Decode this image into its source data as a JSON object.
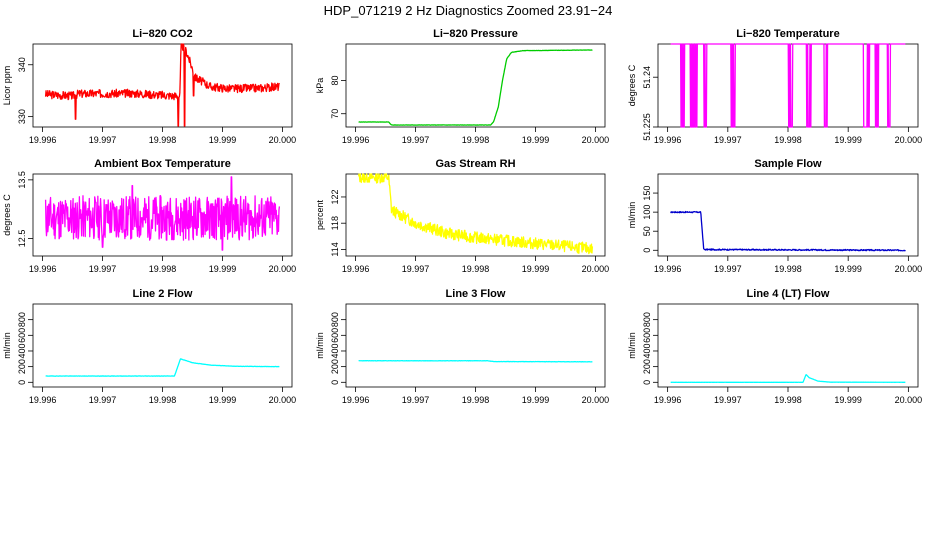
{
  "page_title": "HDP_071219  2 Hz Diagnostics Zoomed 23.91−24",
  "chart_data": [
    {
      "type": "line",
      "title": "Li−820 CO2",
      "ylabel": "Licor ppm",
      "color": "#ff0000",
      "xlim": [
        19.996,
        20.0
      ],
      "x_ticks": [
        "19.996",
        "19.997",
        "19.998",
        "19.999",
        "20.000"
      ],
      "ylim": [
        328,
        344
      ],
      "y_ticks": [
        330,
        340
      ],
      "series": [
        {
          "name": "CO2",
          "kind": "noisy",
          "noise": 0.5,
          "seed": 3,
          "points": [
            [
              19.99605,
              334.3
            ],
            [
              19.9965,
              334.0
            ],
            [
              19.9966,
              334.4
            ],
            [
              19.9975,
              334.5
            ],
            [
              19.9982,
              334.0
            ],
            [
              19.99829,
              334.0
            ],
            [
              19.99831,
              344.0
            ],
            [
              19.9984,
              342.5
            ],
            [
              19.99855,
              337.5
            ],
            [
              19.9988,
              335.8
            ],
            [
              19.9991,
              335.4
            ],
            [
              19.9996,
              335.5
            ],
            [
              19.99995,
              335.8
            ]
          ],
          "spikes": [
            [
              19.99655,
              329.5
            ],
            [
              19.99826,
              328.2
            ],
            [
              19.99837,
              328.2
            ],
            [
              19.99852,
              334.0
            ]
          ]
        }
      ]
    },
    {
      "type": "line",
      "title": "Li−820 Pressure",
      "ylabel": "kPa",
      "color": "#00cc00",
      "xlim": [
        19.996,
        20.0
      ],
      "x_ticks": [
        "19.996",
        "19.997",
        "19.998",
        "19.999",
        "20.000"
      ],
      "ylim": [
        66,
        91
      ],
      "y_ticks": [
        70,
        80
      ],
      "series": [
        {
          "name": "Pressure",
          "kind": "smooth",
          "noise": 0.05,
          "seed": 5,
          "points": [
            [
              19.99605,
              67.5
            ],
            [
              19.99655,
              67.5
            ],
            [
              19.9966,
              66.6
            ],
            [
              19.99825,
              66.6
            ],
            [
              19.9983,
              67.5
            ],
            [
              19.99838,
              72.0
            ],
            [
              19.99845,
              80.0
            ],
            [
              19.99852,
              86.5
            ],
            [
              19.9986,
              88.5
            ],
            [
              19.9988,
              89.0
            ],
            [
              19.99995,
              89.2
            ]
          ],
          "spikes": []
        }
      ]
    },
    {
      "type": "line",
      "title": "Li−820 Temperature",
      "ylabel": "degrees C",
      "color": "#ff00ff",
      "xlim": [
        19.996,
        20.0
      ],
      "x_ticks": [
        "19.996",
        "19.997",
        "19.998",
        "19.999",
        "20.000"
      ],
      "ylim": [
        51.225,
        51.25
      ],
      "y_ticks": [
        51.225,
        51.24
      ],
      "series": [
        {
          "name": "Temperature",
          "kind": "binary",
          "high": 51.25,
          "low": 51.225,
          "seed": 7,
          "points": [
            [
              19.99605,
              51.25
            ],
            [
              19.99995,
              51.25
            ]
          ],
          "drop_regions": [
            [
              19.99622,
              19.99628
            ],
            [
              19.99638,
              19.9965
            ],
            [
              19.9966,
              19.99666
            ],
            [
              19.99705,
              19.99712
            ],
            [
              19.998,
              19.99808
            ],
            [
              19.9983,
              19.99838
            ],
            [
              19.9986,
              19.99866
            ],
            [
              19.99925,
              19.99935
            ],
            [
              19.99945,
              19.9995
            ],
            [
              19.99965,
              19.9997
            ]
          ]
        }
      ]
    },
    {
      "type": "line",
      "title": "Ambient Box Temperature",
      "ylabel": "degrees C",
      "color": "#ff00ff",
      "xlim": [
        19.996,
        20.0
      ],
      "x_ticks": [
        "19.996",
        "19.997",
        "19.998",
        "19.999",
        "20.000"
      ],
      "ylim": [
        12.2,
        13.6
      ],
      "y_ticks": [
        12.5,
        13.5
      ],
      "series": [
        {
          "name": "Ambient",
          "kind": "noisy",
          "noise": 0.24,
          "seed": 11,
          "points": [
            [
              19.99605,
              12.85
            ],
            [
              19.99995,
              12.85
            ]
          ],
          "spikes": [
            [
              19.997,
              12.35
            ],
            [
              19.9975,
              13.4
            ],
            [
              19.999,
              12.3
            ],
            [
              19.99915,
              13.55
            ]
          ]
        }
      ]
    },
    {
      "type": "line",
      "title": "Gas Stream RH",
      "ylabel": "percent",
      "color": "#ffff00",
      "xlim": [
        19.996,
        20.0
      ],
      "x_ticks": [
        "19.996",
        "19.997",
        "19.998",
        "19.999",
        "20.000"
      ],
      "ylim": [
        113,
        125.5
      ],
      "y_ticks": [
        114,
        118,
        122
      ],
      "series": [
        {
          "name": "RH",
          "kind": "noisy",
          "noise": 0.55,
          "seed": 13,
          "points": [
            [
              19.99605,
              125.0
            ],
            [
              19.99655,
              125.0
            ],
            [
              19.9966,
              120.0
            ],
            [
              19.997,
              118.0
            ],
            [
              19.9975,
              116.5
            ],
            [
              19.998,
              115.8
            ],
            [
              19.999,
              114.9
            ],
            [
              19.99995,
              114.1
            ]
          ],
          "spikes": []
        }
      ]
    },
    {
      "type": "line",
      "title": "Sample Flow",
      "ylabel": "ml/min",
      "color": "#0000cc",
      "xlim": [
        19.996,
        20.0
      ],
      "x_ticks": [
        "19.996",
        "19.997",
        "19.998",
        "19.999",
        "20.000"
      ],
      "ylim": [
        -15,
        200
      ],
      "y_ticks": [
        0,
        50,
        100,
        150
      ],
      "series": [
        {
          "name": "Sample Flow",
          "kind": "noisy",
          "noise": 1.0,
          "seed": 17,
          "points": [
            [
              19.99605,
              100
            ],
            [
              19.99655,
              100
            ],
            [
              19.9966,
              2
            ],
            [
              19.99995,
              0
            ]
          ],
          "spikes": []
        }
      ]
    },
    {
      "type": "line",
      "title": "Line 2 Flow",
      "ylabel": "ml/min",
      "color": "#00ffff",
      "xlim": [
        19.996,
        20.0
      ],
      "x_ticks": [
        "19.996",
        "19.997",
        "19.998",
        "19.999",
        "20.000"
      ],
      "ylim": [
        -60,
        1000
      ],
      "y_ticks": [
        0,
        200,
        400,
        600,
        800
      ],
      "series": [
        {
          "name": "Line 2",
          "kind": "smooth",
          "noise": 2,
          "seed": 19,
          "points": [
            [
              19.99605,
              80
            ],
            [
              19.9982,
              80
            ],
            [
              19.9983,
              300
            ],
            [
              19.9985,
              250
            ],
            [
              19.9988,
              220
            ],
            [
              19.9992,
              205
            ],
            [
              19.99995,
              200
            ]
          ],
          "spikes": []
        }
      ]
    },
    {
      "type": "line",
      "title": "Line 3 Flow",
      "ylabel": "ml/min",
      "color": "#00ffff",
      "xlim": [
        19.996,
        20.0
      ],
      "x_ticks": [
        "19.996",
        "19.997",
        "19.998",
        "19.999",
        "20.000"
      ],
      "ylim": [
        -60,
        1000
      ],
      "y_ticks": [
        0,
        200,
        400,
        600,
        800
      ],
      "series": [
        {
          "name": "Line 3",
          "kind": "smooth",
          "noise": 2,
          "seed": 23,
          "points": [
            [
              19.99605,
              275
            ],
            [
              19.9982,
              275
            ],
            [
              19.9983,
              265
            ],
            [
              19.99995,
              262
            ]
          ],
          "spikes": []
        }
      ]
    },
    {
      "type": "line",
      "title": "Line 4 (LT) Flow",
      "ylabel": "ml/min",
      "color": "#00ffff",
      "xlim": [
        19.996,
        20.0
      ],
      "x_ticks": [
        "19.996",
        "19.997",
        "19.998",
        "19.999",
        "20.000"
      ],
      "ylim": [
        -60,
        1000
      ],
      "y_ticks": [
        0,
        200,
        400,
        600,
        800
      ],
      "series": [
        {
          "name": "Line 4 (LT)",
          "kind": "smooth",
          "noise": 0.5,
          "seed": 29,
          "points": [
            [
              19.99605,
              0
            ],
            [
              19.99825,
              0
            ],
            [
              19.9983,
              100
            ],
            [
              19.99835,
              60
            ],
            [
              19.9985,
              15
            ],
            [
              19.9987,
              2
            ],
            [
              19.99995,
              0
            ]
          ],
          "spikes": []
        }
      ]
    }
  ]
}
